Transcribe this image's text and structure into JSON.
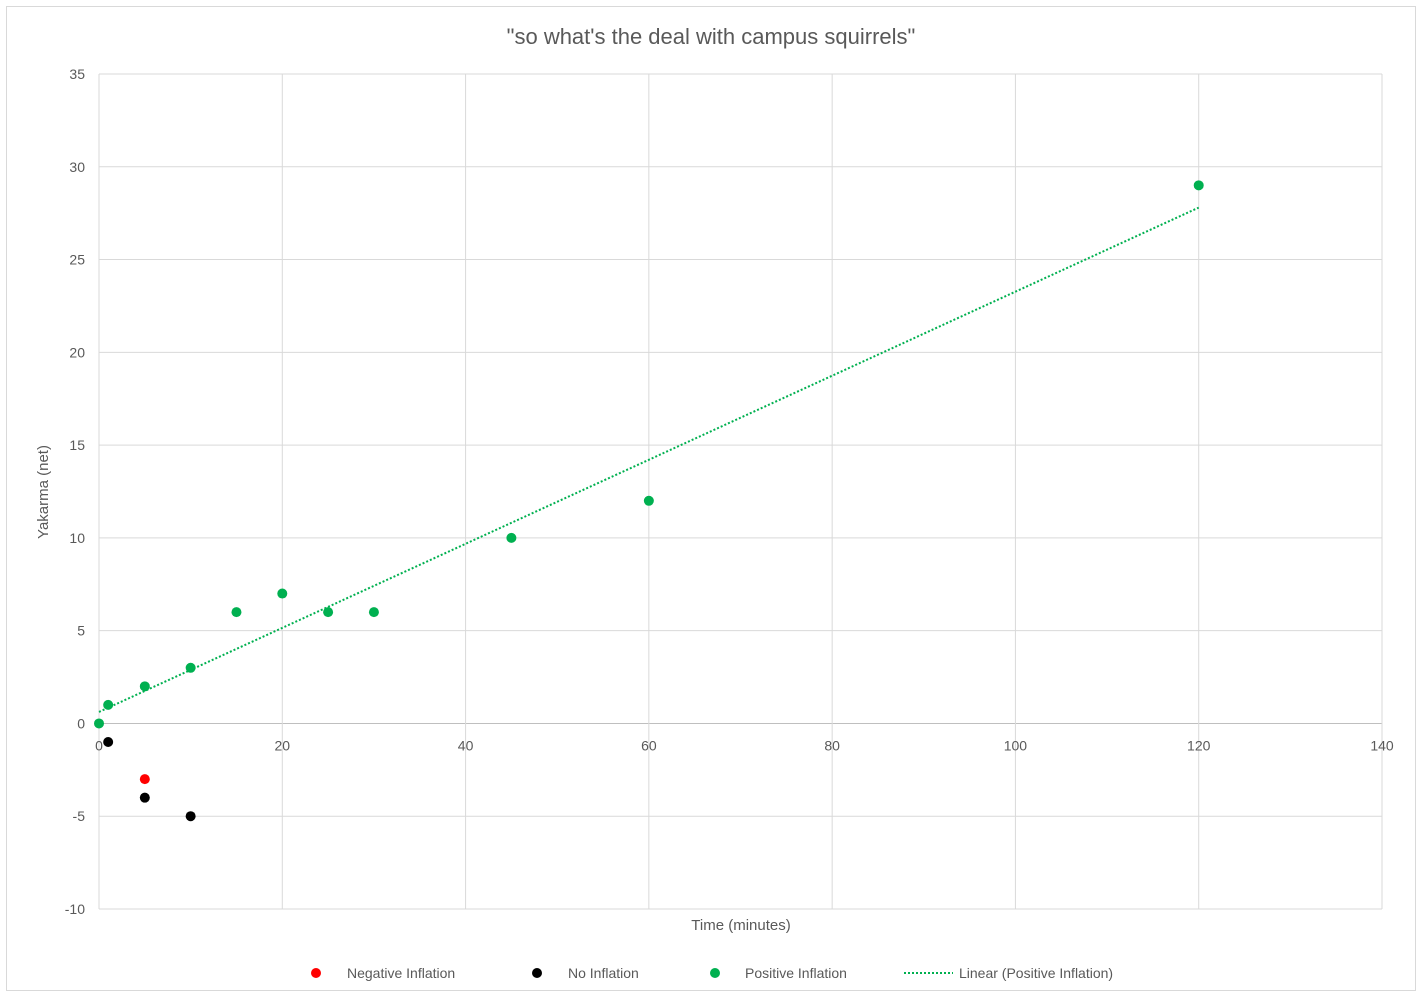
{
  "chart_data": {
    "type": "scatter",
    "title": "\"so what's the deal with campus squirrels\"",
    "xlabel": "Time (minutes)",
    "ylabel": "Yakarma (net)",
    "xlim": [
      0,
      140
    ],
    "ylim": [
      -10,
      35
    ],
    "xticks": [
      0,
      20,
      40,
      60,
      80,
      100,
      120,
      140
    ],
    "yticks": [
      -10,
      -5,
      0,
      5,
      10,
      15,
      20,
      25,
      30,
      35
    ],
    "grid": true,
    "legend_position": "bottom",
    "series": [
      {
        "name": "Negative Inflation",
        "color": "#ff0000",
        "points": [
          [
            5,
            -3
          ]
        ]
      },
      {
        "name": "No Inflation",
        "color": "#000000",
        "points": [
          [
            1,
            -1
          ],
          [
            5,
            -4
          ],
          [
            10,
            -5
          ]
        ]
      },
      {
        "name": "Positive Inflation",
        "color": "#00b050",
        "points": [
          [
            0,
            0
          ],
          [
            1,
            1
          ],
          [
            5,
            2
          ],
          [
            10,
            3
          ],
          [
            15,
            6
          ],
          [
            20,
            7
          ],
          [
            25,
            6
          ],
          [
            30,
            6
          ],
          [
            45,
            10
          ],
          [
            60,
            12
          ],
          [
            120,
            29
          ]
        ]
      }
    ],
    "trendline": {
      "name": "Linear (Positive Inflation)",
      "color": "#00b050",
      "style": "dotted",
      "x": [
        0,
        120
      ],
      "y": [
        0.62,
        27.8
      ]
    }
  }
}
